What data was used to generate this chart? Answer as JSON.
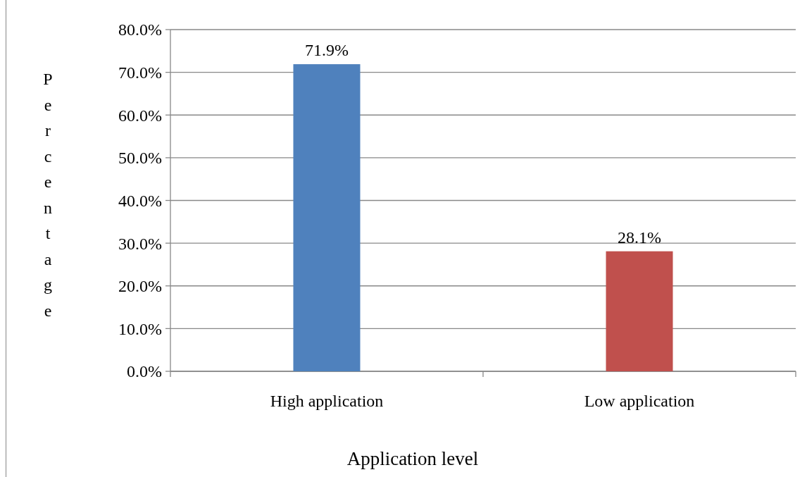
{
  "chart_data": {
    "type": "bar",
    "xlabel": "Application level",
    "ylabel": "Percentage",
    "categories": [
      "High application",
      "Low application"
    ],
    "values": [
      71.9,
      28.1
    ],
    "colors": [
      "#4f81bd",
      "#c0504d"
    ],
    "value_labels": [
      "71.9%",
      "28.1%"
    ],
    "ylim": [
      0,
      80
    ],
    "yticks": [
      {
        "value": 0,
        "label": "0.0%"
      },
      {
        "value": 10,
        "label": "10.0%"
      },
      {
        "value": 20,
        "label": "20.0%"
      },
      {
        "value": 30,
        "label": "30.0%"
      },
      {
        "value": 40,
        "label": "40.0%"
      },
      {
        "value": 50,
        "label": "50.0%"
      },
      {
        "value": 60,
        "label": "60.0%"
      },
      {
        "value": 70,
        "label": "70.0%"
      },
      {
        "value": 80,
        "label": "80.0%"
      }
    ],
    "grid": "y"
  }
}
